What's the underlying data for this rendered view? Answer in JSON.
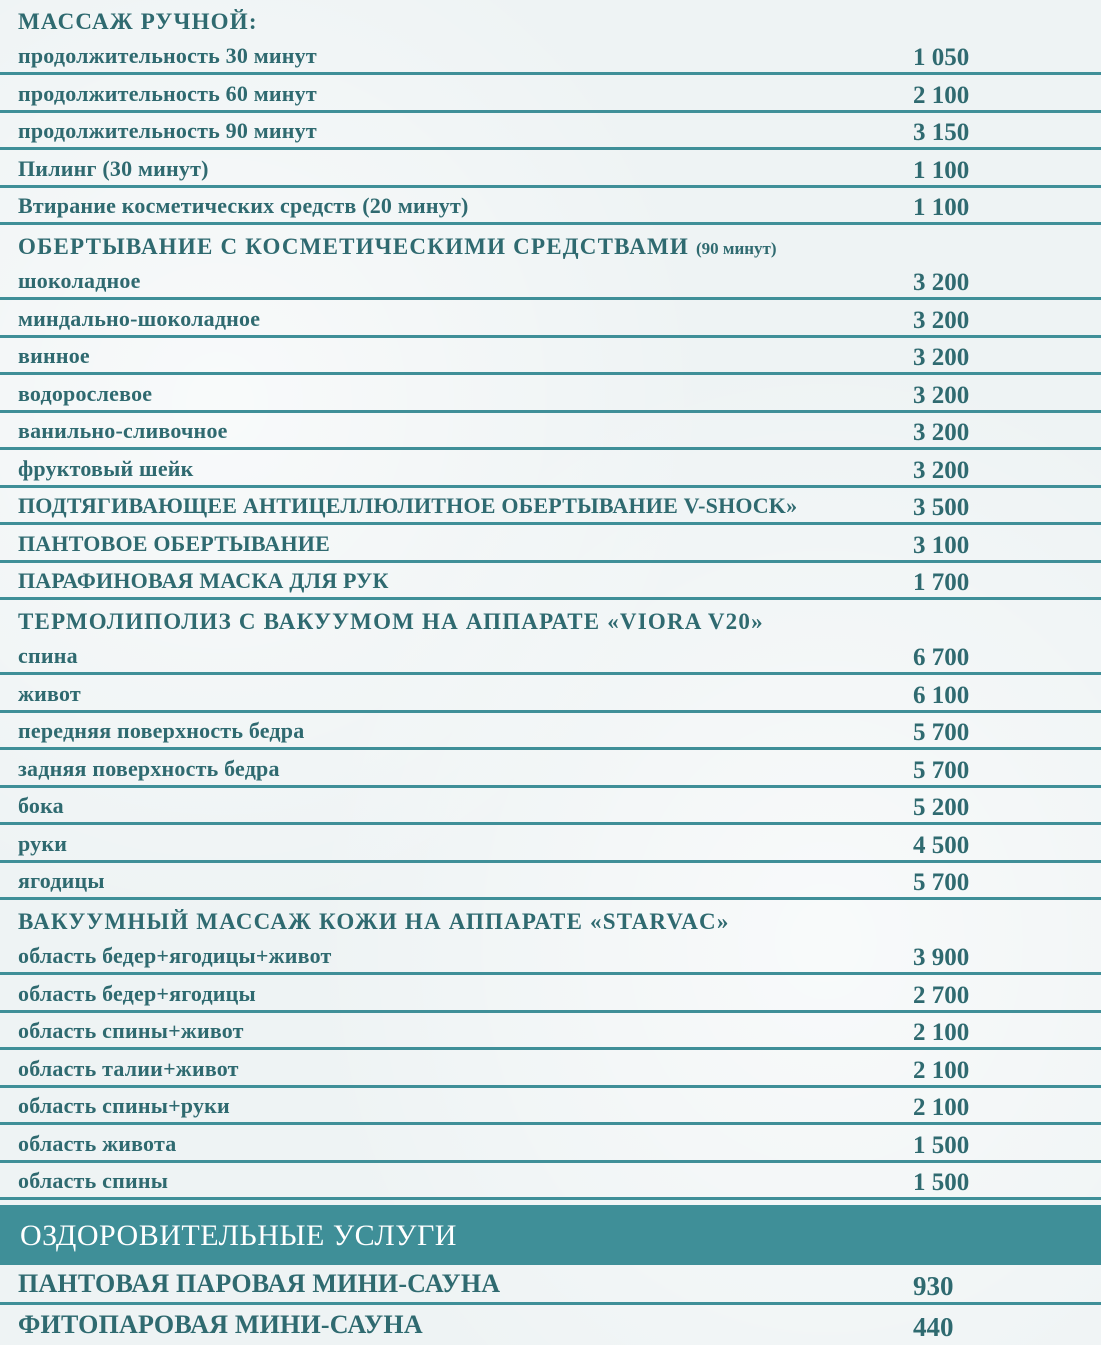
{
  "sections": [
    {
      "title": "МАССАЖ РУЧНОЙ:",
      "note": "",
      "items": [
        {
          "name": "продолжительность 30 минут",
          "price": "1 050"
        },
        {
          "name": "продолжительность 60 минут",
          "price": "2 100"
        },
        {
          "name": "продолжительность 90 минут",
          "price": "3 150"
        },
        {
          "name": "Пилинг  (30 минут)",
          "price": "1 100"
        },
        {
          "name": "Втирание косметических средств (20 минут)",
          "price": "1 100"
        }
      ]
    },
    {
      "title": "ОБЕРТЫВАНИЕ С КОСМЕТИЧЕСКИМИ СРЕДСТВАМИ",
      "note": "(90 минут)",
      "items": [
        {
          "name": "шоколадное",
          "price": "3 200"
        },
        {
          "name": "миндально-шоколадное",
          "price": "3 200"
        },
        {
          "name": "винное",
          "price": "3 200"
        },
        {
          "name": "водорослевое",
          "price": "3 200"
        },
        {
          "name": "ванильно-сливочное",
          "price": "3 200"
        },
        {
          "name": "фруктовый шейк",
          "price": "3 200"
        },
        {
          "name": "ПОДТЯГИВАЮЩЕЕ АНТИЦЕЛЛЮЛИТНОЕ ОБЕРТЫВАНИЕ V-SHOCK»",
          "price": "3 500"
        },
        {
          "name": "ПАНТОВОЕ ОБЕРТЫВАНИЕ",
          "price": "3 100"
        },
        {
          "name": "ПАРАФИНОВАЯ МАСКА ДЛЯ РУК",
          "price": "1 700"
        }
      ]
    },
    {
      "title": "ТЕРМОЛИПОЛИЗ С ВАКУУМОМ НА АППАРАТЕ «VIORA V20»",
      "note": "",
      "items": [
        {
          "name": "спина",
          "price": "6 700"
        },
        {
          "name": "живот",
          "price": "6 100"
        },
        {
          "name": "передняя поверхность бедра",
          "price": "5 700"
        },
        {
          "name": "задняя поверхность бедра",
          "price": "5 700"
        },
        {
          "name": "бока",
          "price": "5 200"
        },
        {
          "name": "руки",
          "price": "4 500"
        },
        {
          "name": "ягодицы",
          "price": "5 700"
        }
      ]
    },
    {
      "title": "ВАКУУМНЫЙ МАССАЖ КОЖИ НА АППАРАТЕ «STARVAC»",
      "note": "",
      "items": [
        {
          "name": "область бедер+ягодицы+живот",
          "price": "3 900"
        },
        {
          "name": "область бедер+ягодицы",
          "price": "2 700"
        },
        {
          "name": "область спины+живот",
          "price": "2 100"
        },
        {
          "name": "область талии+живот",
          "price": "2 100"
        },
        {
          "name": "область спины+руки",
          "price": "2 100"
        },
        {
          "name": "область живота",
          "price": "1 500"
        },
        {
          "name": "область спины",
          "price": "1 500"
        }
      ]
    }
  ],
  "wellness": {
    "title": "ОЗДОРОВИТЕЛЬНЫЕ УСЛУГИ",
    "items": [
      {
        "name": "ПАНТОВАЯ ПАРОВАЯ МИНИ-САУНА",
        "price": "930"
      },
      {
        "name": "ФИТОПАРОВАЯ МИНИ-САУНА",
        "price": "440"
      }
    ]
  },
  "colors": {
    "text": "#2f6a70",
    "accent": "#3f8f98",
    "background": "#eef3f4"
  }
}
